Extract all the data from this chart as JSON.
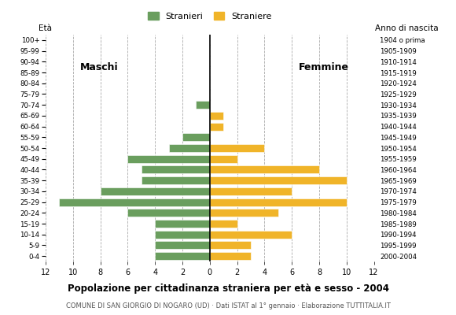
{
  "age_groups_bottom_to_top": [
    "0-4",
    "5-9",
    "10-14",
    "15-19",
    "20-24",
    "25-29",
    "30-34",
    "35-39",
    "40-44",
    "45-49",
    "50-54",
    "55-59",
    "60-64",
    "65-69",
    "70-74",
    "75-79",
    "80-84",
    "85-89",
    "90-94",
    "95-99",
    "100+"
  ],
  "birth_years_bottom_to_top": [
    "2000-2004",
    "1995-1999",
    "1990-1994",
    "1985-1989",
    "1980-1984",
    "1975-1979",
    "1970-1974",
    "1965-1969",
    "1960-1964",
    "1955-1959",
    "1950-1954",
    "1945-1949",
    "1940-1944",
    "1935-1939",
    "1930-1934",
    "1925-1929",
    "1920-1924",
    "1915-1919",
    "1910-1914",
    "1905-1909",
    "1904 o prima"
  ],
  "males_bottom_to_top": [
    4,
    4,
    4,
    4,
    6,
    11,
    8,
    5,
    5,
    6,
    3,
    2,
    0,
    0,
    1,
    0,
    0,
    0,
    0,
    0,
    0
  ],
  "females_bottom_to_top": [
    3,
    3,
    6,
    2,
    5,
    10,
    6,
    10,
    8,
    2,
    4,
    0,
    1,
    1,
    0,
    0,
    0,
    0,
    0,
    0,
    0
  ],
  "color_male": "#6a9e5e",
  "color_female": "#f0b429",
  "background_color": "#ffffff",
  "grid_color": "#aaaaaa",
  "title": "Popolazione per cittadinanza straniera per età e sesso - 2004",
  "subtitle": "COMUNE DI SAN GIORGIO DI NOGARO (UD) · Dati ISTAT al 1° gennaio · Elaborazione TUTTITALIA.IT",
  "legend_male": "Stranieri",
  "legend_female": "Straniere",
  "eta_label": "Età",
  "anno_label": "Anno di nascita",
  "label_maschi": "Maschi",
  "label_femmine": "Femmine",
  "xmax": 12
}
